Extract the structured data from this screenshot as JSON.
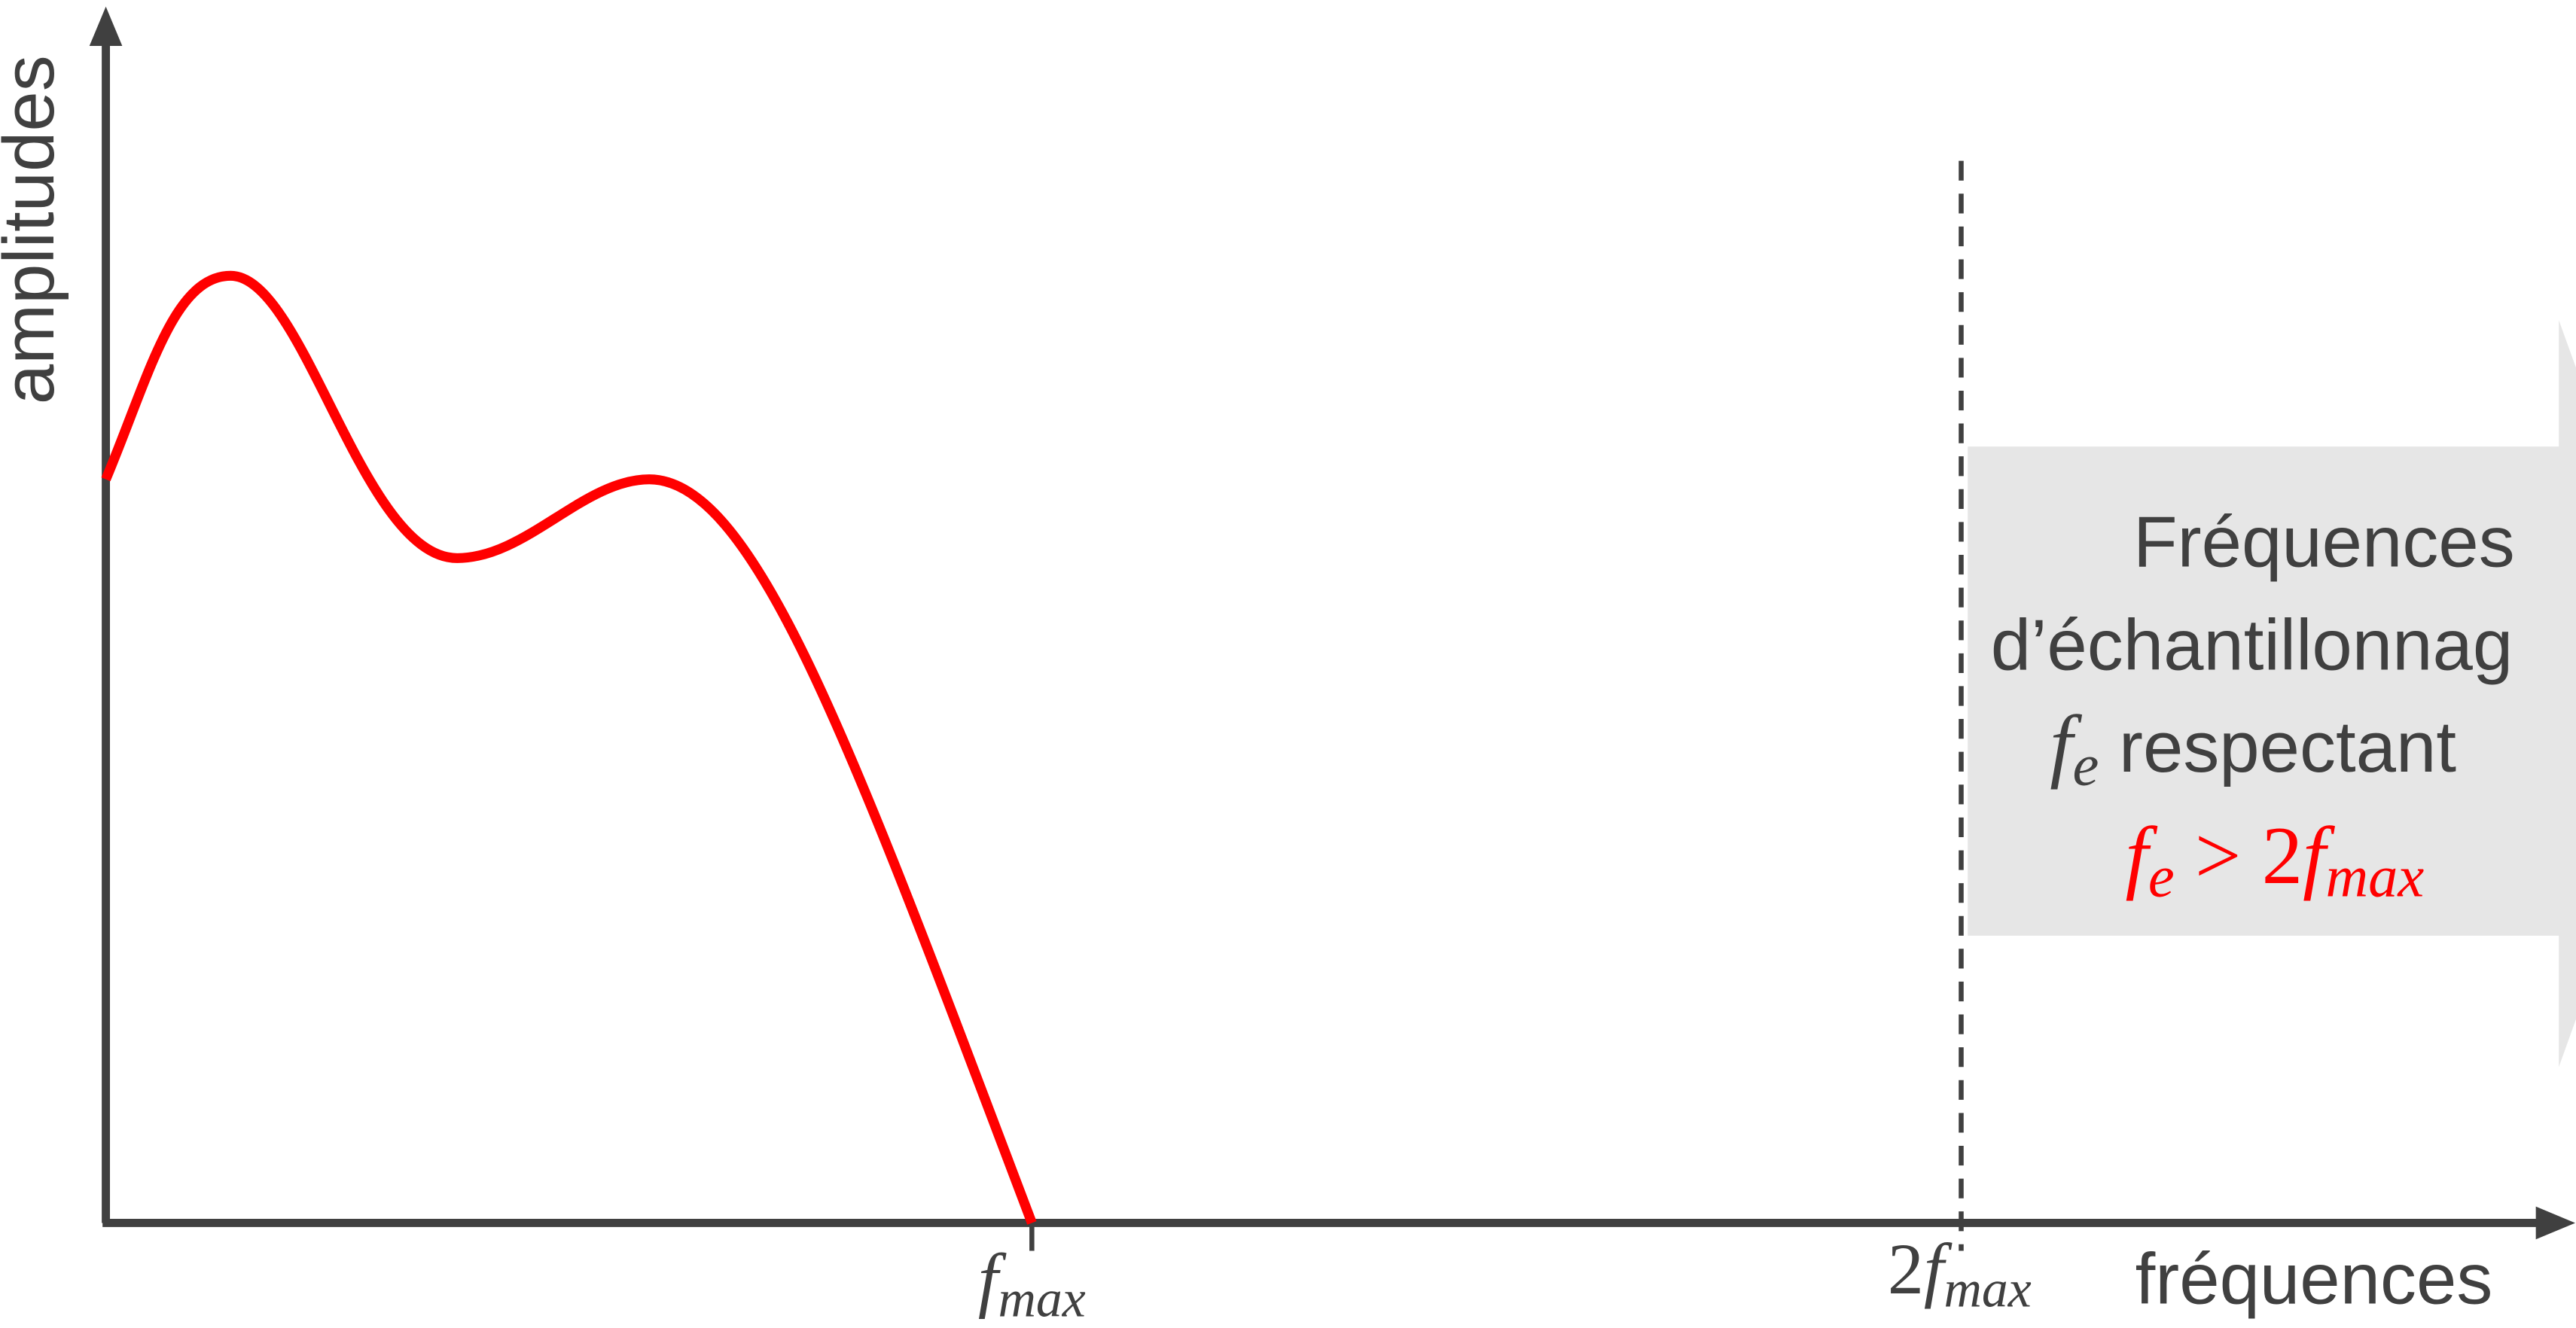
{
  "axes": {
    "y_label": "amplitudes",
    "x_label": "fréquences"
  },
  "x_ticks": [
    {
      "parts": [
        {
          "text": "f",
          "italic": true
        },
        {
          "text": "max",
          "italic": true,
          "sub": true
        }
      ]
    },
    {
      "parts": [
        {
          "text": "2"
        },
        {
          "text": "f",
          "italic": true
        },
        {
          "text": "max",
          "italic": true,
          "sub": true
        }
      ]
    }
  ],
  "box": {
    "lines": [
      {
        "parts": [
          {
            "text": "Fréquences"
          }
        ]
      },
      {
        "parts": [
          {
            "text": "d’échantillonnag"
          }
        ]
      },
      {
        "parts": [
          {
            "text": "f",
            "italic": true,
            "math": true
          },
          {
            "text": "e",
            "italic": true,
            "sub": true,
            "math": true
          },
          {
            "text": " respectant"
          }
        ]
      },
      {
        "color": "#ff0000",
        "parts": [
          {
            "text": "f",
            "italic": true,
            "math": true
          },
          {
            "text": "e",
            "italic": true,
            "sub": true,
            "math": true
          },
          {
            "text": " > 2",
            "math": true
          },
          {
            "text": "f",
            "italic": true,
            "math": true
          },
          {
            "text": "max",
            "italic": true,
            "sub": true,
            "math": true
          }
        ]
      }
    ]
  }
}
